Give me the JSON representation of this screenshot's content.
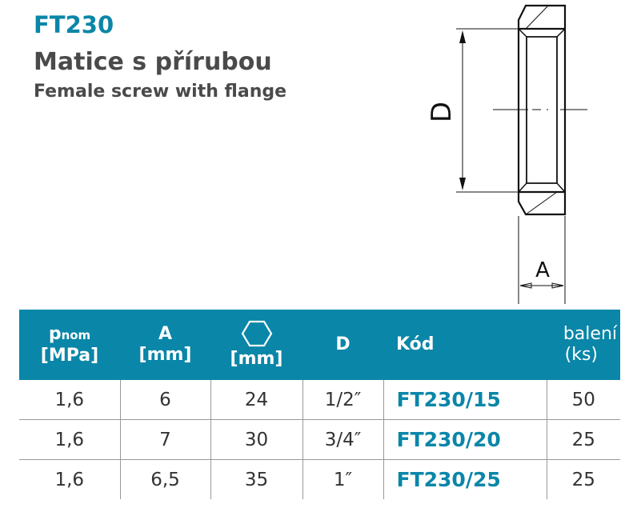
{
  "header": {
    "code": "FT230",
    "title_cz": "Matice s přírubou",
    "title_en": "Female screw with flange"
  },
  "drawing": {
    "label_d": "D",
    "label_a": "A"
  },
  "table": {
    "columns": {
      "p": "p",
      "p_sub": "nom",
      "p_unit": "[MPa]",
      "a": "A",
      "a_unit": "[mm]",
      "hex_unit": "[mm]",
      "d": "D",
      "kod": "Kód",
      "pack": "balení",
      "pack_unit": "(ks)"
    },
    "hex_icon": "hexagon-icon",
    "rows": [
      {
        "p": "1,6",
        "a": "6",
        "hex": "24",
        "d": "1/2″",
        "kod": "FT230/15",
        "pack": "50"
      },
      {
        "p": "1,6",
        "a": "7",
        "hex": "30",
        "d": "3/4″",
        "kod": "FT230/20",
        "pack": "25"
      },
      {
        "p": "1,6",
        "a": "6,5",
        "hex": "35",
        "d": "1″",
        "kod": "FT230/25",
        "pack": "25"
      }
    ]
  },
  "colors": {
    "accent": "#0a86a8",
    "text": "#4a4a4a"
  }
}
